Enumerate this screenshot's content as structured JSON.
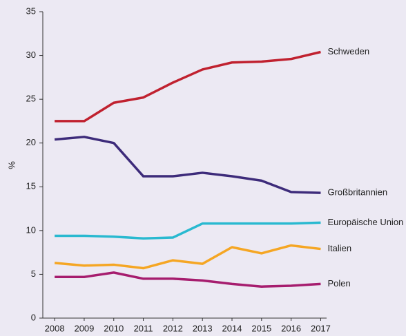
{
  "chart_data": {
    "type": "line",
    "ylabel": "%",
    "x": [
      2008,
      2009,
      2010,
      2011,
      2012,
      2013,
      2014,
      2015,
      2016,
      2017
    ],
    "xlim": [
      2007.6,
      2017.2
    ],
    "xticks": [
      2008,
      2009,
      2010,
      2011,
      2012,
      2013,
      2014,
      2015,
      2016,
      2017
    ],
    "ylim": [
      0,
      35
    ],
    "yticks": [
      0,
      5,
      10,
      15,
      20,
      25,
      30,
      35
    ],
    "grid": false,
    "legend": "line-end",
    "series": [
      {
        "name": "Schweden",
        "color": "#c0212f",
        "values": [
          22.5,
          22.5,
          24.6,
          25.2,
          26.9,
          28.4,
          29.2,
          29.3,
          29.6,
          30.4
        ]
      },
      {
        "name": "Großbritannien",
        "color": "#3d2b7a",
        "values": [
          20.4,
          20.7,
          20.0,
          16.2,
          16.2,
          16.6,
          16.2,
          15.7,
          14.4,
          14.3
        ]
      },
      {
        "name": "Europäische Union",
        "color": "#29b9d0",
        "values": [
          9.4,
          9.4,
          9.3,
          9.1,
          9.2,
          10.8,
          10.8,
          10.8,
          10.8,
          10.9
        ]
      },
      {
        "name": "Italien",
        "color": "#f5a623",
        "values": [
          6.3,
          6.0,
          6.1,
          5.7,
          6.6,
          6.2,
          8.1,
          7.4,
          8.3,
          7.9
        ]
      },
      {
        "name": "Polen",
        "color": "#a61d6e",
        "values": [
          4.7,
          4.7,
          5.2,
          4.5,
          4.5,
          4.3,
          3.9,
          3.6,
          3.7,
          3.9
        ]
      }
    ]
  }
}
